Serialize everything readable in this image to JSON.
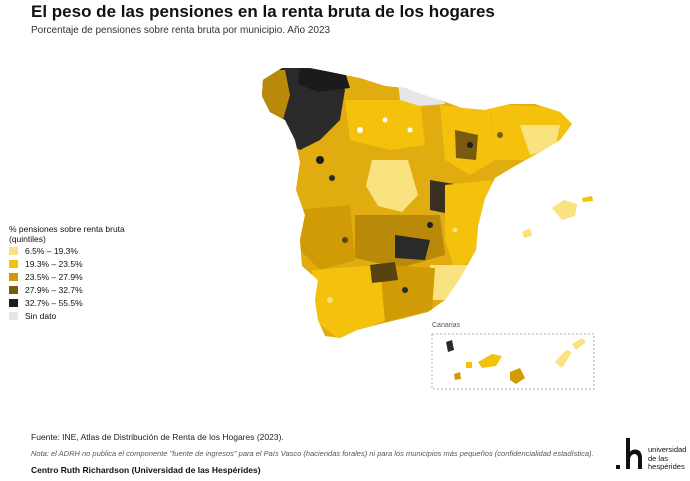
{
  "title": "El peso de las pensiones en la renta bruta de los hogares",
  "subtitle": "Porcentaje de pensiones sobre renta bruta por municipio. Año 2023",
  "legend": {
    "title": "% pensiones sobre renta bruta (quintiles)",
    "items": [
      {
        "label": "6.5% – 19.3%",
        "color": "#f9e27f"
      },
      {
        "label": "19.3% – 23.5%",
        "color": "#f4c20d"
      },
      {
        "label": "23.5% – 27.9%",
        "color": "#d09b05"
      },
      {
        "label": "27.9% – 32.7%",
        "color": "#7a5a10"
      },
      {
        "label": "32.7% – 55.5%",
        "color": "#1e1e1e"
      },
      {
        "label": "Sin dato",
        "color": "#e6e6e6"
      }
    ]
  },
  "inset_label": "Canarias",
  "source": "Fuente: INE, Atlas de Distribución de Renta de los Hogares (2023).",
  "note": "Nota: el ADRH no publica el componente \"fuente de ingresos\" para el País Vasco (haciendas forales) ni para los municipios más pequeños (confidencialidad estadística).",
  "credit": "Centro Ruth Richardson (Universidad de las Hespérides)",
  "logo": {
    "text_line1": "universidad",
    "text_line2": "de las",
    "text_line3": "hespérides"
  }
}
